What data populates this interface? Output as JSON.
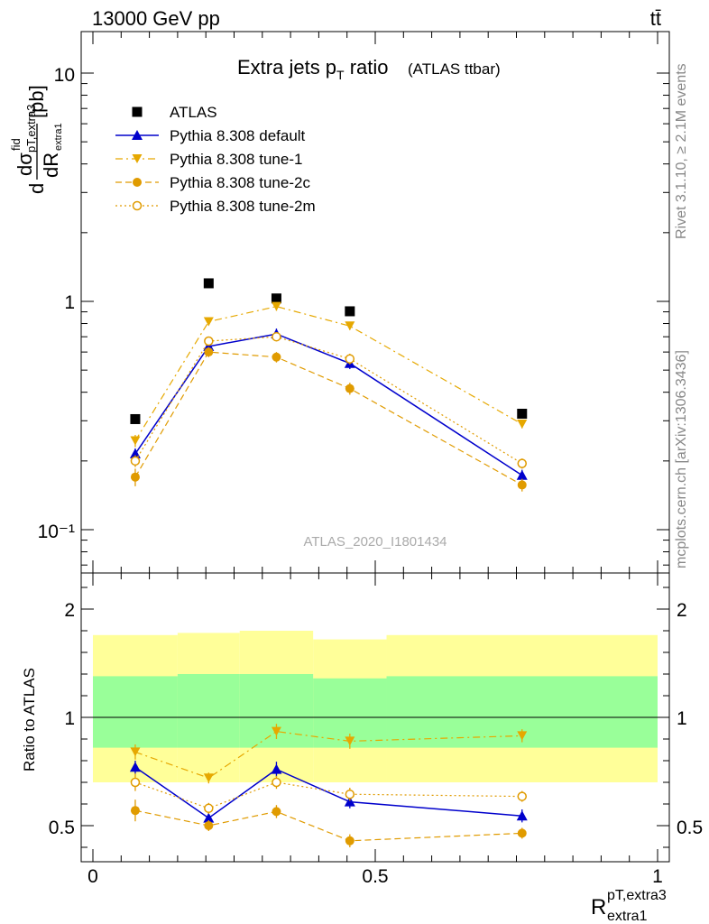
{
  "header": {
    "energy_label": "13000 GeV pp",
    "process_label": "tt̄"
  },
  "side_labels": {
    "rivet": "Rivet 3.1.10, ≥ 2.1M events",
    "mcplots": "mcplots.cern.ch [arXiv:1306.3436]"
  },
  "watermark": "ATLAS_2020_I1801434",
  "title": {
    "main": "Extra jets p",
    "sub": "T",
    "tail": " ratio",
    "paren": "(ATLAS ttbar)"
  },
  "axis_labels": {
    "y_top": "[pb]",
    "y_bottom": "Ratio to ATLAS",
    "x_main": "R",
    "x_sup": "pT,extra3",
    "x_sub": "extra1"
  },
  "chart_data": [
    {
      "type": "scatter",
      "panel": "main",
      "yscale": "log",
      "xlim": [
        -0.01,
        1.01
      ],
      "ylim": [
        0.07,
        15
      ],
      "x_ticks": [
        0,
        0.5,
        1
      ],
      "y_tick_labels": [
        "10⁻¹",
        "1",
        "10"
      ],
      "y_tick_values": [
        0.1,
        1,
        10
      ],
      "legend_placement": "top-left",
      "series": [
        {
          "name": "ATLAS",
          "color": "#000000",
          "marker": "square",
          "line": "none",
          "x": [
            0.075,
            0.205,
            0.325,
            0.455,
            0.76
          ],
          "y": [
            0.305,
            1.2,
            1.03,
            0.905,
            0.322
          ]
        },
        {
          "name": "Pythia 8.308 default",
          "color": "#0000cc",
          "marker": "triangle-up",
          "line": "solid",
          "x": [
            0.075,
            0.205,
            0.325,
            0.455,
            0.76
          ],
          "y": [
            0.215,
            0.635,
            0.72,
            0.535,
            0.173
          ],
          "err": [
            0.012,
            0.03,
            0.04,
            0.03,
            0.01
          ]
        },
        {
          "name": "Pythia 8.308 tune-1",
          "color": "#e6a800",
          "marker": "triangle-down",
          "line": "dashdot",
          "x": [
            0.075,
            0.205,
            0.325,
            0.455,
            0.76
          ],
          "y": [
            0.245,
            0.815,
            0.95,
            0.78,
            0.29
          ],
          "err": [
            0.015,
            0.03,
            0.04,
            0.03,
            0.012
          ]
        },
        {
          "name": "Pythia 8.308 tune-2c",
          "color": "#e09b00",
          "marker": "circle",
          "line": "dashed",
          "x": [
            0.075,
            0.205,
            0.325,
            0.455,
            0.76
          ],
          "y": [
            0.17,
            0.6,
            0.57,
            0.415,
            0.157
          ],
          "err": [
            0.015,
            0.03,
            0.03,
            0.025,
            0.01
          ]
        },
        {
          "name": "Pythia 8.308 tune-2m",
          "color": "#e09b00",
          "marker": "open-circle",
          "line": "dotted",
          "x": [
            0.075,
            0.205,
            0.325,
            0.455,
            0.76
          ],
          "y": [
            0.2,
            0.67,
            0.7,
            0.56,
            0.195
          ],
          "err": [
            0.012,
            0.03,
            0.03,
            0.03,
            0.01
          ]
        }
      ]
    },
    {
      "type": "scatter",
      "panel": "ratio",
      "ylabel": "Ratio to ATLAS",
      "xlim": [
        -0.01,
        1.01
      ],
      "ylim": [
        0.35,
        2.4
      ],
      "x_ticks": [
        0,
        0.5,
        1
      ],
      "x_tick_labels": [
        "0",
        "0.5",
        "1"
      ],
      "y_ticks": [
        0.5,
        1,
        2
      ],
      "y_tick_labels": [
        "0.5",
        "1",
        "2"
      ],
      "reference_line": 1,
      "bands": [
        {
          "color": "#ffff99",
          "edges": [
            0,
            0.15,
            0.26,
            0.39,
            0.52,
            1
          ],
          "low": [
            0.7,
            0.7,
            0.7,
            0.7,
            0.7
          ],
          "high": [
            1.38,
            1.39,
            1.4,
            1.36,
            1.38
          ]
        },
        {
          "color": "#99ff99",
          "edges": [
            0,
            0.15,
            0.26,
            0.39,
            0.52,
            1
          ],
          "low": [
            0.86,
            0.86,
            0.86,
            0.86,
            0.86
          ],
          "high": [
            1.19,
            1.2,
            1.2,
            1.18,
            1.19
          ]
        }
      ],
      "series": [
        {
          "name": "Pythia 8.308 default",
          "color": "#0000cc",
          "marker": "triangle-up",
          "line": "solid",
          "x": [
            0.075,
            0.205,
            0.325,
            0.455,
            0.76
          ],
          "y": [
            0.77,
            0.535,
            0.76,
            0.61,
            0.545
          ],
          "err": [
            0.03,
            0.025,
            0.035,
            0.03,
            0.03
          ]
        },
        {
          "name": "Pythia 8.308 tune-1",
          "color": "#e6a800",
          "marker": "triangle-down",
          "line": "dashdot",
          "x": [
            0.075,
            0.205,
            0.325,
            0.455,
            0.76
          ],
          "y": [
            0.84,
            0.72,
            0.935,
            0.89,
            0.915
          ],
          "err": [
            0.035,
            0.025,
            0.035,
            0.035,
            0.03
          ]
        },
        {
          "name": "Pythia 8.308 tune-2c",
          "color": "#e09b00",
          "marker": "circle",
          "line": "dashed",
          "x": [
            0.075,
            0.205,
            0.325,
            0.455,
            0.76
          ],
          "y": [
            0.57,
            0.5,
            0.565,
            0.43,
            0.465
          ],
          "err": [
            0.05,
            0.025,
            0.03,
            0.03,
            0.025
          ]
        },
        {
          "name": "Pythia 8.308 tune-2m",
          "color": "#e09b00",
          "marker": "open-circle",
          "line": "dotted",
          "x": [
            0.075,
            0.205,
            0.325,
            0.455,
            0.76
          ],
          "y": [
            0.7,
            0.58,
            0.7,
            0.645,
            0.635
          ],
          "err": [
            0.04,
            0.025,
            0.03,
            0.03,
            0.025
          ]
        }
      ]
    }
  ]
}
